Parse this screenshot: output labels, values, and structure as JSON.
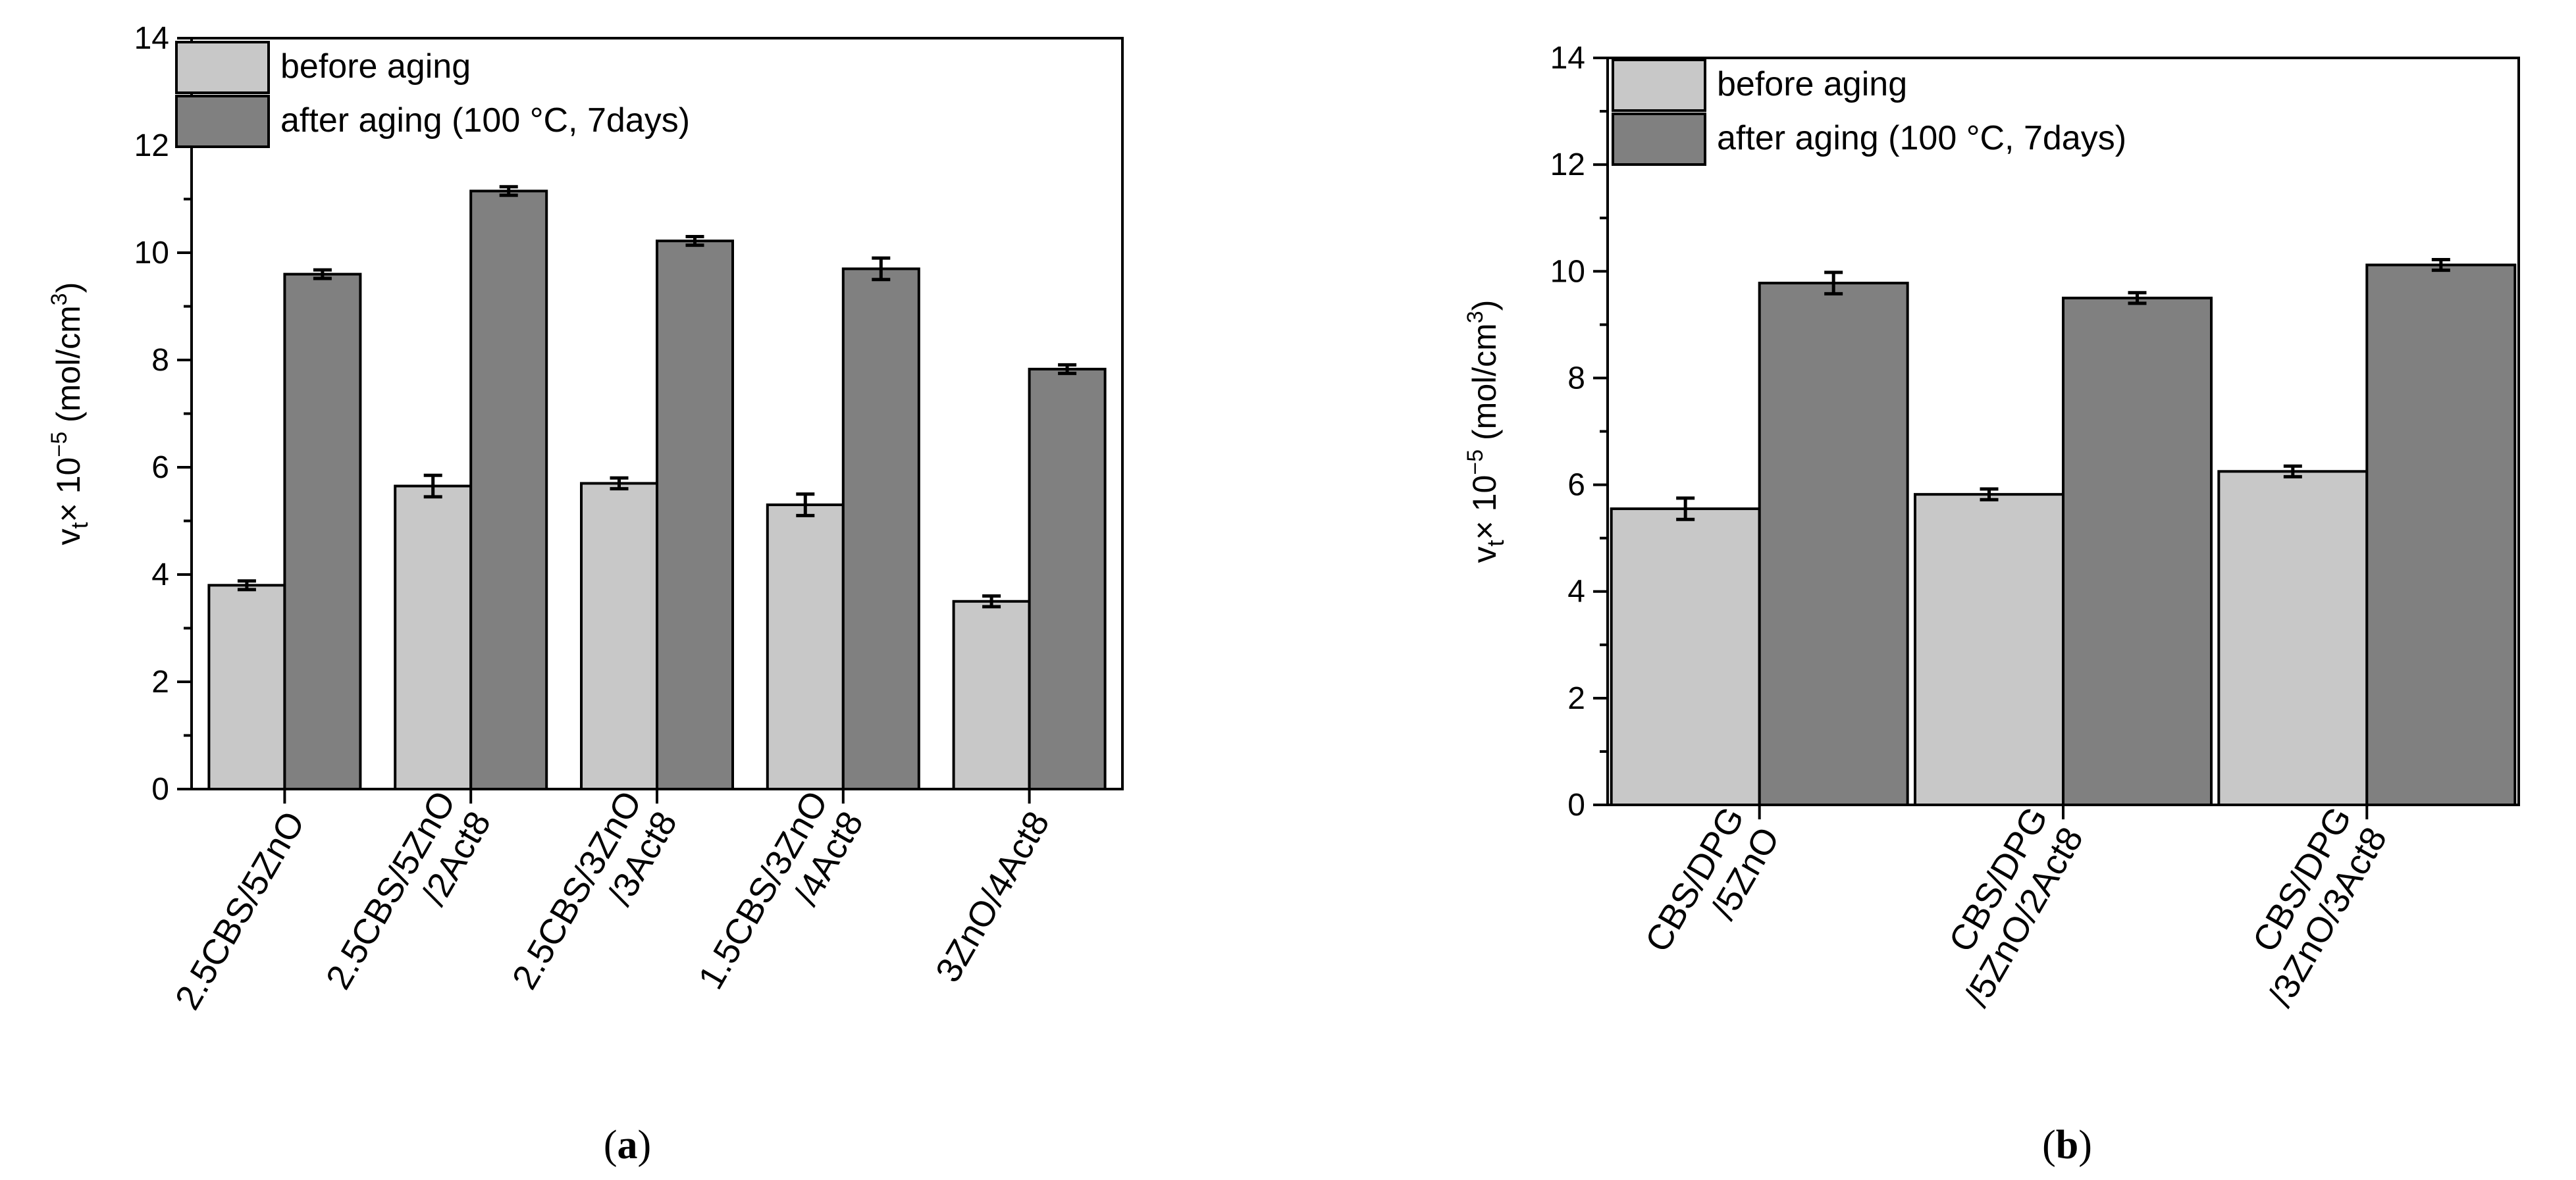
{
  "chart_data": [
    {
      "type": "bar",
      "panel_label": "a",
      "ylabel": {
        "main": "v",
        "sub": "t",
        "mid": "× 10",
        "exp": "−5",
        "unit_pre": " (mol/cm",
        "unit_exp": "3",
        "unit_post": ")"
      },
      "ylim": [
        0,
        14
      ],
      "yticks": [
        "0",
        "2",
        "4",
        "6",
        "8",
        "10",
        "12",
        "14"
      ],
      "categories": [
        [
          "2.5CBS/5ZnO"
        ],
        [
          "2.5CBS/5ZnO",
          "/2Act8"
        ],
        [
          "2.5CBS/3ZnO",
          "/3Act8"
        ],
        [
          "1.5CBS/3ZnO",
          "/4Act8"
        ],
        [
          "3ZnO/4Act8"
        ]
      ],
      "series": [
        {
          "name": "before aging",
          "color": "#c8c8c8",
          "values": [
            3.8,
            5.65,
            5.7,
            5.3,
            3.5
          ],
          "errors": [
            0.08,
            0.2,
            0.1,
            0.2,
            0.1
          ]
        },
        {
          "name": "after aging (100 °C, 7days)",
          "color": "#808080",
          "values": [
            9.6,
            11.15,
            10.22,
            9.7,
            7.83
          ],
          "errors": [
            0.08,
            0.08,
            0.08,
            0.2,
            0.08
          ]
        }
      ],
      "legend": "top-left",
      "grid": false
    },
    {
      "type": "bar",
      "panel_label": "b",
      "ylabel": {
        "main": "v",
        "sub": "t",
        "mid": "× 10",
        "exp": "−5",
        "unit_pre": " (mol/cm",
        "unit_exp": "3",
        "unit_post": ")"
      },
      "ylim": [
        0,
        14
      ],
      "yticks": [
        "0",
        "2",
        "4",
        "6",
        "8",
        "10",
        "12",
        "14"
      ],
      "categories": [
        [
          "CBS/DPG",
          "/5ZnO"
        ],
        [
          "CBS/DPG",
          "/5ZnO/2Act8"
        ],
        [
          "CBS/DPG",
          "/3ZnO/3Act8"
        ]
      ],
      "series": [
        {
          "name": "before aging",
          "color": "#c8c8c8",
          "values": [
            5.55,
            5.82,
            6.25
          ],
          "errors": [
            0.2,
            0.1,
            0.1
          ]
        },
        {
          "name": "after aging (100 °C, 7days)",
          "color": "#808080",
          "values": [
            9.78,
            9.5,
            10.12
          ],
          "errors": [
            0.2,
            0.1,
            0.1
          ]
        }
      ],
      "legend": "top-left",
      "grid": false
    }
  ]
}
